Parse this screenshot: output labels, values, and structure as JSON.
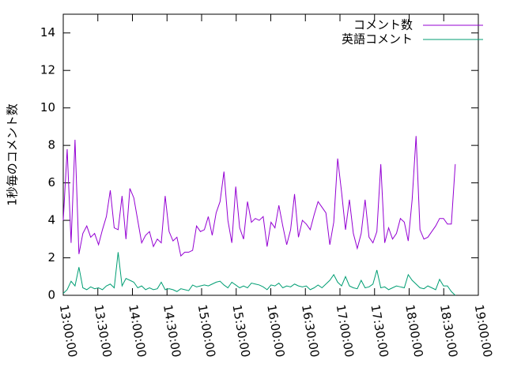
{
  "chart_data": {
    "type": "line",
    "ylabel": "1秒毎のコメント数",
    "legend": "top-right",
    "ylim": [
      0,
      15
    ],
    "yticks": [
      0,
      2,
      4,
      6,
      8,
      10,
      12,
      14
    ],
    "xlim": [
      "13:00:00",
      "19:00:00"
    ],
    "xticks": [
      "13:00:00",
      "13:30:00",
      "14:00:00",
      "14:30:00",
      "15:00:00",
      "15:30:00",
      "16:00:00",
      "16:30:00",
      "17:00:00",
      "17:30:00",
      "18:00:00",
      "18:30:00",
      "19:00:00"
    ],
    "x": [
      "13:00:00",
      "13:03:24",
      "13:06:48",
      "13:10:12",
      "13:13:36",
      "13:17:00",
      "13:20:24",
      "13:23:48",
      "13:27:12",
      "13:30:36",
      "13:34:00",
      "13:37:24",
      "13:40:48",
      "13:44:12",
      "13:47:36",
      "13:51:00",
      "13:54:24",
      "13:57:48",
      "14:01:12",
      "14:04:36",
      "14:08:00",
      "14:11:24",
      "14:14:48",
      "14:18:12",
      "14:21:36",
      "14:25:00",
      "14:28:24",
      "14:31:48",
      "14:35:12",
      "14:38:36",
      "14:42:00",
      "14:45:24",
      "14:48:48",
      "14:52:12",
      "14:55:36",
      "14:59:00",
      "15:02:24",
      "15:05:48",
      "15:09:12",
      "15:12:36",
      "15:16:00",
      "15:19:24",
      "15:22:48",
      "15:26:12",
      "15:29:36",
      "15:33:00",
      "15:36:24",
      "15:39:48",
      "15:43:12",
      "15:46:36",
      "15:50:00",
      "15:53:24",
      "15:56:48",
      "16:00:12",
      "16:03:36",
      "16:07:00",
      "16:10:24",
      "16:13:48",
      "16:17:12",
      "16:20:36",
      "16:24:00",
      "16:27:24",
      "16:30:48",
      "16:34:12",
      "16:37:36",
      "16:41:00",
      "16:44:24",
      "16:47:48",
      "16:51:12",
      "16:54:36",
      "16:58:00",
      "17:01:24",
      "17:04:48",
      "17:08:12",
      "17:11:36",
      "17:15:00",
      "17:18:24",
      "17:21:48",
      "17:25:12",
      "17:28:36",
      "17:32:00",
      "17:35:24",
      "17:38:48",
      "17:42:12",
      "17:45:36",
      "17:49:00",
      "17:52:24",
      "17:55:48",
      "17:59:12",
      "18:02:36",
      "18:06:00",
      "18:09:24",
      "18:12:48",
      "18:16:12",
      "18:19:36",
      "18:23:00",
      "18:26:24",
      "18:29:48",
      "18:33:12",
      "18:36:36",
      "18:40:00"
    ],
    "series": [
      {
        "name": "コメント数",
        "color": "#9400d3",
        "values": [
          4.0,
          7.8,
          2.8,
          8.3,
          2.2,
          3.3,
          3.7,
          3.1,
          3.3,
          2.7,
          3.5,
          4.2,
          5.6,
          3.6,
          3.5,
          5.3,
          3.0,
          5.7,
          5.2,
          4.0,
          2.8,
          3.2,
          3.4,
          2.6,
          3.0,
          2.8,
          5.3,
          3.4,
          2.9,
          3.1,
          2.1,
          2.3,
          2.3,
          2.4,
          3.7,
          3.4,
          3.5,
          4.2,
          3.2,
          4.4,
          5.0,
          6.6,
          4.0,
          2.8,
          5.8,
          3.6,
          3.0,
          5.0,
          3.9,
          4.1,
          4.0,
          4.2,
          2.6,
          3.9,
          3.6,
          4.8,
          3.7,
          2.7,
          3.5,
          5.4,
          3.1,
          4.0,
          3.8,
          3.5,
          4.3,
          5.0,
          4.7,
          4.4,
          2.7,
          3.9,
          7.3,
          5.5,
          3.5,
          5.1,
          3.3,
          2.5,
          3.3,
          5.1,
          3.1,
          2.8,
          3.4,
          7.0,
          2.8,
          3.6,
          3.0,
          3.3,
          4.1,
          3.9,
          2.9,
          5.1,
          8.5,
          3.5,
          3.0,
          3.1,
          3.4,
          3.7,
          4.1,
          4.1,
          3.8,
          3.8,
          7.0
        ]
      },
      {
        "name": "英語コメント",
        "color": "#009e73",
        "values": [
          0.1,
          0.3,
          0.75,
          0.5,
          1.5,
          0.4,
          0.3,
          0.45,
          0.35,
          0.4,
          0.3,
          0.5,
          0.6,
          0.4,
          2.3,
          0.5,
          0.9,
          0.8,
          0.7,
          0.4,
          0.5,
          0.3,
          0.4,
          0.3,
          0.35,
          0.7,
          0.3,
          0.35,
          0.3,
          0.2,
          0.35,
          0.3,
          0.25,
          0.55,
          0.45,
          0.5,
          0.55,
          0.5,
          0.6,
          0.7,
          0.75,
          0.55,
          0.4,
          0.7,
          0.55,
          0.4,
          0.5,
          0.4,
          0.65,
          0.6,
          0.55,
          0.45,
          0.3,
          0.55,
          0.5,
          0.65,
          0.4,
          0.5,
          0.45,
          0.6,
          0.5,
          0.45,
          0.5,
          0.3,
          0.4,
          0.55,
          0.4,
          0.6,
          0.8,
          1.1,
          0.7,
          0.5,
          1.0,
          0.5,
          0.4,
          0.35,
          0.8,
          0.4,
          0.45,
          0.6,
          1.35,
          0.4,
          0.45,
          0.3,
          0.4,
          0.5,
          0.45,
          0.4,
          1.1,
          0.8,
          0.6,
          0.4,
          0.35,
          0.5,
          0.4,
          0.3,
          0.85,
          0.5,
          0.5,
          0.2,
          0.0
        ]
      }
    ]
  }
}
